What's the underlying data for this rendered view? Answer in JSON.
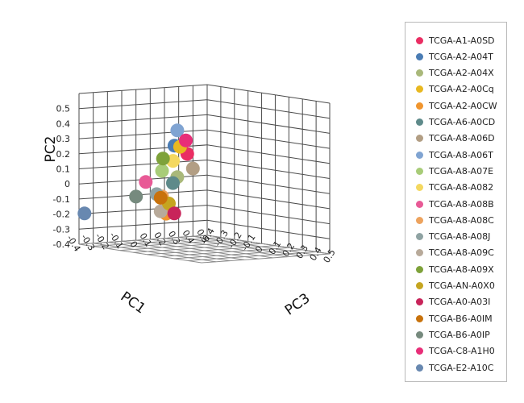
{
  "chart_data": {
    "type": "scatter",
    "projection": "3d",
    "axes": {
      "PC1": {
        "label": "PC1",
        "range": [
          -0.4,
          0.5
        ],
        "ticks": [
          "0.5",
          "0.4",
          "0.3",
          "0.2",
          "0.1",
          "0",
          "-0.1",
          "-0.2",
          "-0.3",
          "-0.4"
        ]
      },
      "PC2": {
        "label": "PC2",
        "range": [
          -0.45,
          0.55
        ],
        "ticks": [
          "0.5",
          "0.4",
          "0.3",
          "0.2",
          "0.1",
          "0",
          "-0.1",
          "-0.2",
          "-0.3",
          "-0.4"
        ]
      },
      "PC3": {
        "label": "PC3",
        "range": [
          -0.4,
          0.5
        ],
        "ticks": [
          "-0.4",
          "-0.3",
          "-0.2",
          "-0.1",
          "0",
          "0.1",
          "0.2",
          "0.3",
          "0.4",
          "0.5"
        ]
      }
    },
    "grid": true,
    "legend_position": "right",
    "series": [
      {
        "name": "TCGA-A1-A0SD",
        "color": "#ea2e63",
        "pc1": 0.36,
        "pc2": 0.1,
        "pc3": -0.4
      },
      {
        "name": "TCGA-A2-A04T",
        "color": "#4a7cb4",
        "pc1": 0.27,
        "pc2": 0.16,
        "pc3": -0.4
      },
      {
        "name": "TCGA-A2-A04X",
        "color": "#a9b87a",
        "pc1": 0.29,
        "pc2": -0.05,
        "pc3": -0.4
      },
      {
        "name": "TCGA-A2-A0Cq",
        "color": "#e8b820",
        "pc1": 0.31,
        "pc2": 0.15,
        "pc3": -0.4
      },
      {
        "name": "TCGA-A2-A0CW",
        "color": "#f0952e",
        "pc1": -0.4,
        "pc2": -0.16,
        "pc3": 0.24
      },
      {
        "name": "TCGA-A6-A0CD",
        "color": "#5e8a8a",
        "pc1": -0.4,
        "pc2": 0.05,
        "pc3": 0.29
      },
      {
        "name": "TCGA-A8-A06D",
        "color": "#b29e84",
        "pc1": 0.4,
        "pc2": 0.0,
        "pc3": -0.4
      },
      {
        "name": "TCGA-A8-A06T",
        "color": "#80a4d2",
        "pc1": 0.29,
        "pc2": 0.26,
        "pc3": -0.4
      },
      {
        "name": "TCGA-A8-A07E",
        "color": "#a8cc78",
        "pc1": -0.4,
        "pc2": 0.12,
        "pc3": 0.21
      },
      {
        "name": "TCGA-A8-A082",
        "color": "#f4d860",
        "pc1": 0.26,
        "pc2": 0.06,
        "pc3": -0.4
      },
      {
        "name": "TCGA-A8-A08B",
        "color": "#e85a96",
        "pc1": -0.4,
        "pc2": 0.03,
        "pc3": 0.09
      },
      {
        "name": "TCGA-A8-A08C",
        "color": "#eda35e",
        "pc1": -0.4,
        "pc2": -0.05,
        "pc3": 0.21
      },
      {
        "name": "TCGA-A8-A08J",
        "color": "#8fa3a3",
        "pc1": -0.4,
        "pc2": -0.04,
        "pc3": 0.17
      },
      {
        "name": "TCGA-A8-A09C",
        "color": "#b8aa9a",
        "pc1": -0.4,
        "pc2": -0.15,
        "pc3": 0.2
      },
      {
        "name": "TCGA-A8-A09X",
        "color": "#7ea23a",
        "pc1": 0.19,
        "pc2": 0.08,
        "pc3": -0.4
      },
      {
        "name": "TCGA-AN-A0X0",
        "color": "#c5a520",
        "pc1": -0.4,
        "pc2": -0.09,
        "pc3": 0.26
      },
      {
        "name": "TCGA-A0-A03I",
        "color": "#c8245a",
        "pc1": -0.4,
        "pc2": -0.15,
        "pc3": 0.3
      },
      {
        "name": "TCGA-B6-A0IM",
        "color": "#c8720c",
        "pc1": -0.4,
        "pc2": -0.06,
        "pc3": 0.2
      },
      {
        "name": "TCGA-B6-A0IP",
        "color": "#768a7e",
        "pc1": 0.0,
        "pc2": -0.16,
        "pc3": -0.4
      },
      {
        "name": "TCGA-C8-A1H0",
        "color": "#e82e78",
        "pc1": 0.35,
        "pc2": 0.19,
        "pc3": -0.4
      },
      {
        "name": "TCGA-E2-A10C",
        "color": "#6888b0",
        "pc1": -0.4,
        "pc2": -0.24,
        "pc3": -0.36
      }
    ]
  }
}
